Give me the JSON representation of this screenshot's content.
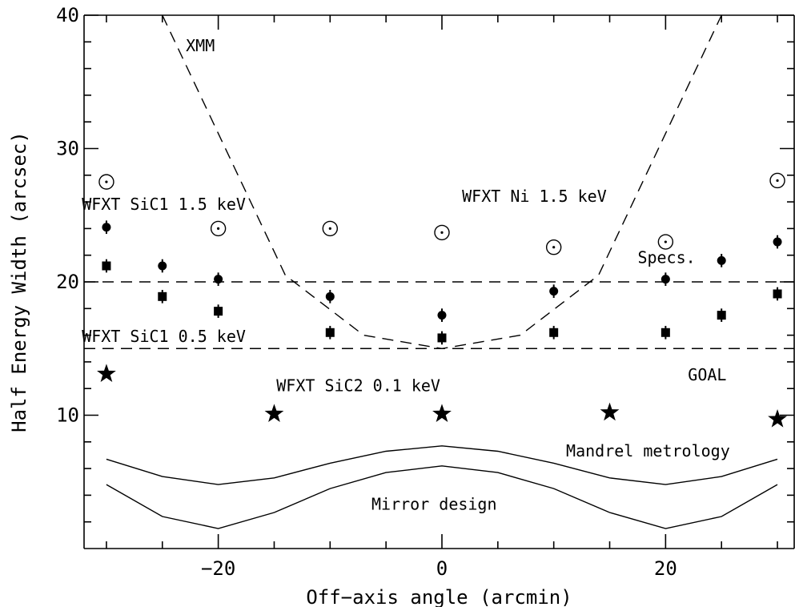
{
  "chart_data": {
    "type": "scatter",
    "xlabel": "Off−axis angle (arcmin)",
    "ylabel": "Half Energy Width (arcsec)",
    "xlim": [
      -32,
      31.5
    ],
    "ylim": [
      0,
      40
    ],
    "x_ticks": [
      -20,
      0,
      20
    ],
    "x_tick_labels": [
      "−20",
      "0",
      "20"
    ],
    "y_ticks": [
      10,
      20,
      30,
      40
    ],
    "y_tick_labels": [
      "10",
      "20",
      "30",
      "40"
    ],
    "x_minor_step": 5,
    "y_minor_step": 2,
    "grid": false,
    "series": [
      {
        "name": "WFXT Ni 1.5 keV",
        "marker": "circle-dot",
        "points": [
          [
            -30,
            27.5
          ],
          [
            -20,
            24.0
          ],
          [
            -10,
            24.0
          ],
          [
            0,
            23.7
          ],
          [
            10,
            22.6
          ],
          [
            20,
            23.0
          ],
          [
            30,
            27.6
          ]
        ]
      },
      {
        "name": "WFXT SiC1 1.5 keV",
        "marker": "filled-circle",
        "points": [
          [
            -30,
            24.1
          ],
          [
            -25,
            21.2
          ],
          [
            -20,
            20.2
          ],
          [
            -10,
            18.9
          ],
          [
            0,
            17.5
          ],
          [
            10,
            19.3
          ],
          [
            20,
            20.2
          ],
          [
            25,
            21.6
          ],
          [
            30,
            23.0
          ]
        ],
        "errors": [
          0.5,
          0.5,
          0.5,
          0.5,
          0.5,
          0.5,
          0.5,
          0.5,
          0.5
        ]
      },
      {
        "name": "WFXT SiC1 0.5 keV",
        "marker": "filled-square",
        "points": [
          [
            -30,
            21.2
          ],
          [
            -25,
            18.9
          ],
          [
            -20,
            17.8
          ],
          [
            -10,
            16.2
          ],
          [
            0,
            15.8
          ],
          [
            10,
            16.2
          ],
          [
            20,
            16.2
          ],
          [
            25,
            17.5
          ],
          [
            30,
            19.1
          ]
        ],
        "errors": [
          0.5,
          0.5,
          0.5,
          0.5,
          0.5,
          0.5,
          0.5,
          0.5,
          0.5
        ]
      },
      {
        "name": "WFXT SiC2 0.1 keV",
        "marker": "star",
        "points": [
          [
            -30,
            13.1
          ],
          [
            -15,
            10.1
          ],
          [
            0,
            10.1
          ],
          [
            15,
            10.2
          ],
          [
            30,
            9.7
          ]
        ]
      },
      {
        "name": "XMM",
        "style": "dashed",
        "points": [
          [
            -25,
            40
          ],
          [
            -14,
            20.5
          ],
          [
            -7,
            16
          ],
          [
            0,
            15
          ],
          [
            7,
            16
          ],
          [
            14,
            20.5
          ],
          [
            25,
            40
          ]
        ]
      },
      {
        "name": "Specs.",
        "style": "dashed-horizontal",
        "y": 20
      },
      {
        "name": "GOAL",
        "style": "dashed-horizontal",
        "y": 15
      },
      {
        "name": "Mandrel metrology",
        "style": "solid",
        "points": [
          [
            -30,
            6.7
          ],
          [
            -25,
            5.4
          ],
          [
            -20,
            4.8
          ],
          [
            -15,
            5.3
          ],
          [
            -10,
            6.4
          ],
          [
            -5,
            7.3
          ],
          [
            0,
            7.7
          ],
          [
            5,
            7.3
          ],
          [
            10,
            6.4
          ],
          [
            15,
            5.3
          ],
          [
            20,
            4.8
          ],
          [
            25,
            5.4
          ],
          [
            30,
            6.7
          ]
        ]
      },
      {
        "name": "Mirror design",
        "style": "solid",
        "points": [
          [
            -30,
            4.8
          ],
          [
            -25,
            2.4
          ],
          [
            -20,
            1.5
          ],
          [
            -15,
            2.7
          ],
          [
            -10,
            4.5
          ],
          [
            -5,
            5.7
          ],
          [
            0,
            6.2
          ],
          [
            5,
            5.7
          ],
          [
            10,
            4.5
          ],
          [
            15,
            2.7
          ],
          [
            20,
            1.5
          ],
          [
            25,
            2.4
          ],
          [
            30,
            4.8
          ]
        ]
      }
    ],
    "annotations": [
      {
        "text": "XMM",
        "x": -22.9,
        "y": 37.3
      },
      {
        "text": "WFXT SiC1 1.5 keV",
        "x": -32.2,
        "y": 25.4
      },
      {
        "text": "WFXT Ni 1.5 keV",
        "x": 1.8,
        "y": 26.0
      },
      {
        "text": "Specs.",
        "x": 17.5,
        "y": 21.4
      },
      {
        "text": "WFXT SiC1 0.5 keV",
        "x": -32.2,
        "y": 15.5
      },
      {
        "text": "GOAL",
        "x": 22.0,
        "y": 12.6
      },
      {
        "text": "WFXT SiC2 0.1 keV",
        "x": -14.8,
        "y": 11.8
      },
      {
        "text": "Mandrel metrology",
        "x": 11.1,
        "y": 6.9
      },
      {
        "text": "Mirror design",
        "x": -6.3,
        "y": 2.9
      }
    ]
  }
}
